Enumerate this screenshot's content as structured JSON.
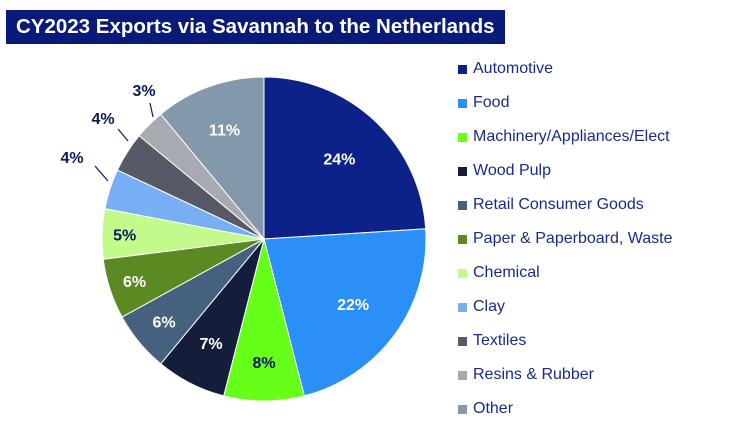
{
  "chart_data": {
    "type": "pie",
    "title": "CY2023 Exports via Savannah to the Netherlands",
    "start_angle_deg": 0,
    "direction": "clockwise",
    "legend_position": "right",
    "slices": [
      {
        "name": "Automotive",
        "value": 24,
        "label": "24%",
        "color": "#0d2288",
        "label_color": "#ffffff"
      },
      {
        "name": "Food",
        "value": 22,
        "label": "22%",
        "color": "#2a8ff7",
        "label_color": "#ffffff"
      },
      {
        "name": "Machinery/Appliances/Elect",
        "value": 8,
        "label": "8%",
        "color": "#66ff1a",
        "label_color": "#0a1a5c"
      },
      {
        "name": "Wood Pulp",
        "value": 7,
        "label": "7%",
        "color": "#141d3a",
        "label_color": "#ffffff"
      },
      {
        "name": "Retail Consumer Goods",
        "value": 6,
        "label": "6%",
        "color": "#45617e",
        "label_color": "#ffffff"
      },
      {
        "name": "Paper & Paperboard, Waste",
        "value": 6,
        "label": "6%",
        "color": "#5b8a23",
        "label_color": "#ffffff"
      },
      {
        "name": "Chemical",
        "value": 5,
        "label": "5%",
        "color": "#c2fb8b",
        "label_color": "#0a1a5c"
      },
      {
        "name": "Clay",
        "value": 4,
        "label": "4%",
        "color": "#78aef4",
        "label_color": "#0a1a5c"
      },
      {
        "name": "Textiles",
        "value": 4,
        "label": "4%",
        "color": "#575a66",
        "label_color": "#0a1a5c"
      },
      {
        "name": "Resins & Rubber",
        "value": 3,
        "label": "3%",
        "color": "#a7aab0",
        "label_color": "#0a1a5c"
      },
      {
        "name": "Other",
        "value": 11,
        "label": "11%",
        "color": "#8498ab",
        "label_color": "#ffffff"
      }
    ]
  }
}
